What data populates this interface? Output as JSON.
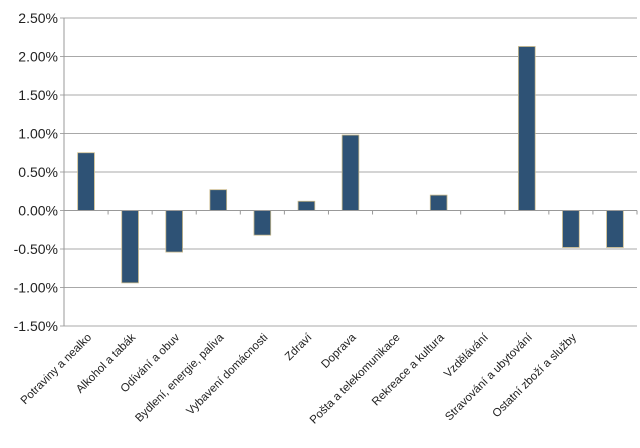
{
  "chart_data": {
    "type": "bar",
    "title": "",
    "xlabel": "",
    "ylabel": "",
    "ylim": [
      -1.5,
      2.5
    ],
    "y_unit": "%",
    "yticks": [
      "2.50%",
      "2.00%",
      "1.50%",
      "1.00%",
      "0.50%",
      "0.00%",
      "-0.50%",
      "-1.00%",
      "-1.50%"
    ],
    "grid": true,
    "bar_color": "#2E5275",
    "categories": [
      "Potraviny a nealko",
      "Alkohol a tabák",
      "Odívání a obuv",
      "Bydlení, energie, paliva",
      "Vybavení domácnosti",
      "Zdraví",
      "Doprava",
      "Pošta a telekomunikace",
      "Rekreace a kultura",
      "Vzdělávání",
      "Stravování a ubytování",
      "Ostatní zboží a služby",
      ""
    ],
    "values": [
      0.75,
      -0.94,
      -0.54,
      0.27,
      -0.32,
      0.12,
      0.98,
      0,
      0.2,
      0,
      2.13,
      -0.48,
      -0.48
    ]
  }
}
